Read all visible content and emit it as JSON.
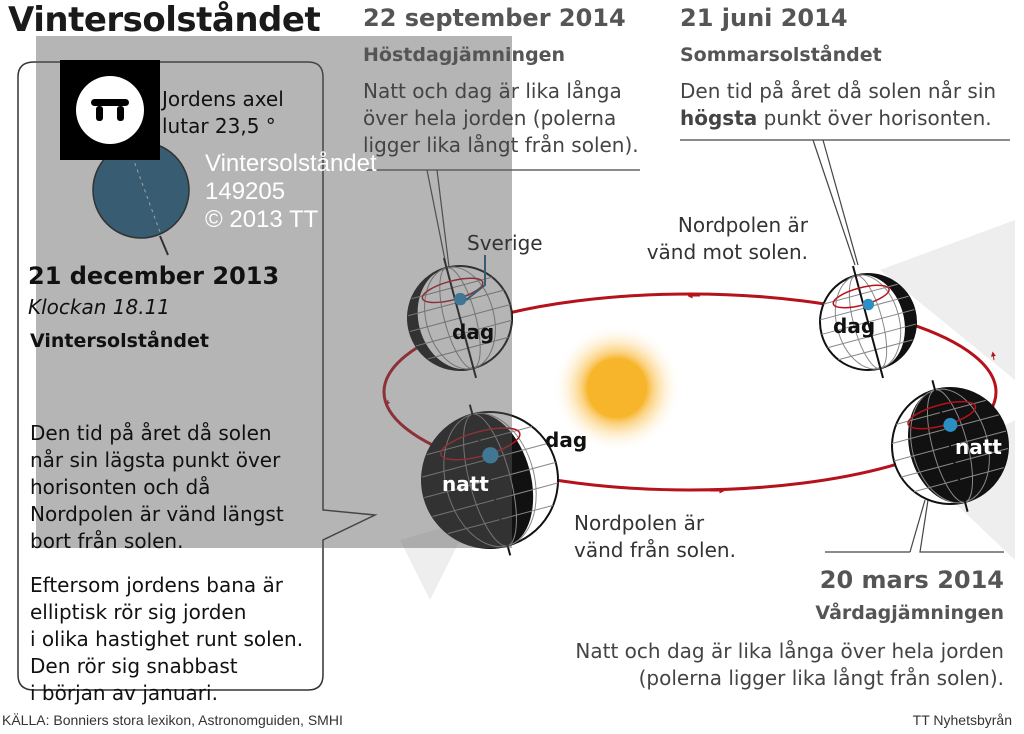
{
  "title": "Vintersolståndet",
  "panel": {
    "axis_text": [
      "Jordens axel",
      "lutar 23,5 °"
    ],
    "date": "21 december 2013",
    "time": "Klockan 18.11",
    "subtitle": "Vintersolståndet",
    "body_lines": [
      "Den tid på året då solen",
      "når sin lägsta punkt över",
      "horisonten och då",
      "Nordpolen är vänd längst",
      "bort från solen."
    ],
    "body2_lines": [
      "Eftersom jordens bana är",
      "elliptisk rör sig jorden",
      "i olika hastighet runt solen.",
      "Den rör sig snabbast",
      "i början av januari."
    ]
  },
  "september": {
    "date": "22 september 2014",
    "subtitle": "Höstdagjämningen",
    "body_lines": [
      "Natt och dag är lika långa",
      "över hela jorden (polerna",
      "ligger lika långt från solen)."
    ]
  },
  "june": {
    "date": "21 juni 2014",
    "subtitle": "Sommarsolståndet",
    "body_line1": "Den tid på året då solen når sin",
    "body_bold": "högsta",
    "body_line2_rest": " punkt över horisonten."
  },
  "march": {
    "date": "20 mars 2014",
    "subtitle": "Vårdagjämningen",
    "body_lines": [
      "Natt och dag är lika långa över hela jorden",
      "(polerna ligger lika långt från solen)."
    ]
  },
  "labels": {
    "sverige": "Sverige",
    "toward_sun": [
      "Nordpolen är",
      "vänd mot solen."
    ],
    "away_sun": [
      "Nordpolen är",
      "vänd från solen."
    ],
    "dag": "dag",
    "natt": "natt"
  },
  "watermark": {
    "lines": [
      "Vintersolståndet",
      "149205",
      "© 2013 TT"
    ],
    "logo": "TT"
  },
  "footer": {
    "source": "KÄLLA: Bonniers stora lexikon, Astronomguiden, SMHI",
    "credit": "TT Nyhetsbyrån"
  },
  "colors": {
    "orbit": "#b5121b",
    "sweden": "#2b8fc4",
    "earth_blue": "#1d5f86",
    "sun": "#f7b52c"
  }
}
